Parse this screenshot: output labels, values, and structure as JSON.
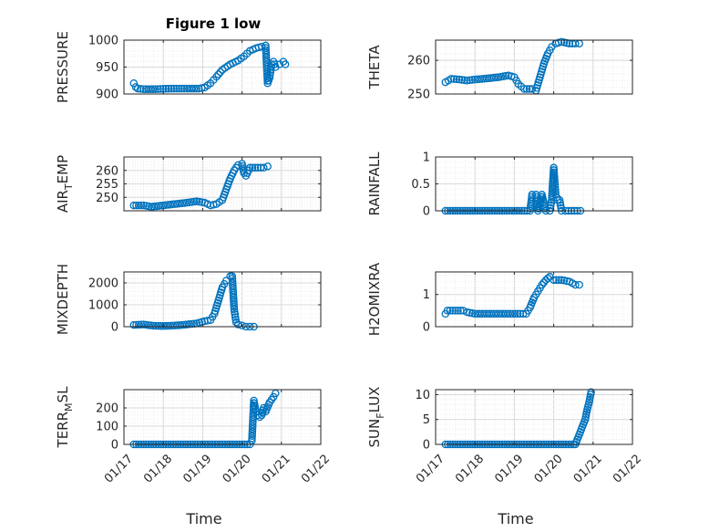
{
  "chart_data": [
    {
      "id": "pressure",
      "type": "scatter",
      "title": "Figure 1 low",
      "ylabel": "PRESSURE",
      "ylim": [
        900,
        1000
      ],
      "yticks": [
        900,
        950,
        1000
      ],
      "series": [
        {
          "points": [
            [
              17.25,
              920
            ],
            [
              17.3,
              913
            ],
            [
              17.35,
              910
            ],
            [
              17.5,
              909
            ],
            [
              17.8,
              909
            ],
            [
              18.2,
              910
            ],
            [
              18.6,
              910
            ],
            [
              18.9,
              910
            ],
            [
              19.05,
              912
            ],
            [
              19.2,
              920
            ],
            [
              19.35,
              932
            ],
            [
              19.5,
              945
            ],
            [
              19.7,
              955
            ],
            [
              19.9,
              962
            ],
            [
              20.05,
              970
            ],
            [
              20.2,
              980
            ],
            [
              20.35,
              985
            ],
            [
              20.5,
              988
            ],
            [
              20.6,
              990
            ],
            [
              20.65,
              920
            ],
            [
              20.7,
              930
            ],
            [
              20.75,
              955
            ],
            [
              20.8,
              960
            ],
            [
              20.85,
              950
            ],
            [
              20.95,
              955
            ],
            [
              21.05,
              960
            ],
            [
              21.1,
              955
            ]
          ]
        }
      ],
      "grid": true,
      "color": "#0072BD"
    },
    {
      "id": "theta",
      "type": "scatter",
      "title": "",
      "ylabel": "THETA",
      "ylim": [
        250,
        266
      ],
      "yticks": [
        250,
        260
      ],
      "series": [
        {
          "points": [
            [
              17.25,
              253.5
            ],
            [
              17.4,
              254.5
            ],
            [
              17.6,
              254.3
            ],
            [
              17.8,
              254
            ],
            [
              18.0,
              254.3
            ],
            [
              18.3,
              254.6
            ],
            [
              18.6,
              255
            ],
            [
              18.85,
              255.5
            ],
            [
              19.0,
              255
            ],
            [
              19.1,
              253
            ],
            [
              19.25,
              251.5
            ],
            [
              19.45,
              251.5
            ],
            [
              19.55,
              251
            ],
            [
              19.65,
              255
            ],
            [
              19.75,
              259
            ],
            [
              19.85,
              262
            ],
            [
              19.95,
              264
            ],
            [
              20.05,
              265
            ],
            [
              20.2,
              265.5
            ],
            [
              20.4,
              265
            ],
            [
              20.55,
              265
            ],
            [
              20.65,
              265
            ]
          ]
        }
      ],
      "grid": true,
      "color": "#0072BD"
    },
    {
      "id": "airtemp",
      "type": "scatter",
      "title": "",
      "ylabel": "AIR_TEMP",
      "ylim": [
        245,
        265
      ],
      "yticks": [
        250,
        255,
        260
      ],
      "series": [
        {
          "points": [
            [
              17.25,
              247
            ],
            [
              17.5,
              247
            ],
            [
              17.7,
              246.5
            ],
            [
              18.0,
              247
            ],
            [
              18.3,
              247.5
            ],
            [
              18.6,
              248
            ],
            [
              18.85,
              248.5
            ],
            [
              19.05,
              248
            ],
            [
              19.2,
              247
            ],
            [
              19.35,
              247.5
            ],
            [
              19.5,
              249
            ],
            [
              19.6,
              253
            ],
            [
              19.7,
              257
            ],
            [
              19.8,
              260
            ],
            [
              19.9,
              262
            ],
            [
              20.0,
              262.5
            ],
            [
              20.05,
              259
            ],
            [
              20.1,
              258
            ],
            [
              20.2,
              261
            ],
            [
              20.4,
              261
            ],
            [
              20.55,
              261
            ],
            [
              20.65,
              261.5
            ]
          ]
        }
      ],
      "grid": true,
      "color": "#0072BD"
    },
    {
      "id": "rainfall",
      "type": "scatter",
      "title": "",
      "ylabel": "RAINFALL",
      "ylim": [
        0,
        1
      ],
      "yticks": [
        0,
        0.5,
        1
      ],
      "series": [
        {
          "points": [
            [
              17.25,
              0
            ],
            [
              17.5,
              0
            ],
            [
              17.75,
              0
            ],
            [
              18.0,
              0
            ],
            [
              18.25,
              0
            ],
            [
              18.5,
              0
            ],
            [
              18.75,
              0
            ],
            [
              19.0,
              0
            ],
            [
              19.25,
              0
            ],
            [
              19.4,
              0
            ],
            [
              19.45,
              0.3
            ],
            [
              19.55,
              0.3
            ],
            [
              19.6,
              0
            ],
            [
              19.7,
              0.3
            ],
            [
              19.8,
              0
            ],
            [
              19.9,
              0
            ],
            [
              19.95,
              0.2
            ],
            [
              20.0,
              0.8
            ],
            [
              20.05,
              0.3
            ],
            [
              20.1,
              0.2
            ],
            [
              20.15,
              0.2
            ],
            [
              20.2,
              0
            ],
            [
              20.3,
              0
            ],
            [
              20.45,
              0
            ],
            [
              20.6,
              0
            ],
            [
              20.68,
              0
            ]
          ]
        }
      ],
      "grid": true,
      "color": "#0072BD"
    },
    {
      "id": "mixdepth",
      "type": "scatter",
      "title": "",
      "ylabel": "MIXDEPTH",
      "ylim": [
        0,
        2500
      ],
      "yticks": [
        0,
        1000,
        2000
      ],
      "series": [
        {
          "points": [
            [
              17.25,
              80
            ],
            [
              17.5,
              100
            ],
            [
              17.75,
              40
            ],
            [
              18.0,
              30
            ],
            [
              18.3,
              50
            ],
            [
              18.6,
              100
            ],
            [
              18.85,
              150
            ],
            [
              19.05,
              250
            ],
            [
              19.2,
              300
            ],
            [
              19.3,
              600
            ],
            [
              19.4,
              1200
            ],
            [
              19.5,
              1800
            ],
            [
              19.6,
              2100
            ],
            [
              19.7,
              2300
            ],
            [
              19.75,
              2300
            ],
            [
              19.8,
              800
            ],
            [
              19.85,
              200
            ],
            [
              19.9,
              100
            ],
            [
              20.0,
              50
            ],
            [
              20.1,
              0
            ],
            [
              20.2,
              0
            ],
            [
              20.3,
              0
            ]
          ]
        }
      ],
      "grid": true,
      "color": "#0072BD"
    },
    {
      "id": "h2omixra",
      "type": "scatter",
      "title": "",
      "ylabel": "H2OMIXRA",
      "ylim": [
        0,
        1.7
      ],
      "yticks": [
        0,
        1
      ],
      "series": [
        {
          "points": [
            [
              17.25,
              0.4
            ],
            [
              17.3,
              0.5
            ],
            [
              17.5,
              0.5
            ],
            [
              17.7,
              0.5
            ],
            [
              17.8,
              0.45
            ],
            [
              18.0,
              0.4
            ],
            [
              18.3,
              0.4
            ],
            [
              18.6,
              0.4
            ],
            [
              18.9,
              0.4
            ],
            [
              19.15,
              0.4
            ],
            [
              19.3,
              0.4
            ],
            [
              19.4,
              0.6
            ],
            [
              19.5,
              0.9
            ],
            [
              19.6,
              1.1
            ],
            [
              19.7,
              1.3
            ],
            [
              19.8,
              1.45
            ],
            [
              19.85,
              1.5
            ],
            [
              19.9,
              1.55
            ],
            [
              20.0,
              1.45
            ],
            [
              20.2,
              1.45
            ],
            [
              20.4,
              1.4
            ],
            [
              20.55,
              1.3
            ],
            [
              20.65,
              1.3
            ]
          ]
        }
      ],
      "grid": true,
      "color": "#0072BD"
    },
    {
      "id": "terrmsl",
      "type": "scatter",
      "title": "",
      "xlabel": "Time",
      "ylabel": "TERR_MSL",
      "ylim": [
        0,
        300
      ],
      "yticks": [
        0,
        100,
        200
      ],
      "xticks": [
        "01/17",
        "01/18",
        "01/19",
        "01/20",
        "01/21",
        "01/22"
      ],
      "series": [
        {
          "points": [
            [
              17.25,
              0
            ],
            [
              17.5,
              0
            ],
            [
              17.75,
              0
            ],
            [
              18.0,
              0
            ],
            [
              18.25,
              0
            ],
            [
              18.5,
              0
            ],
            [
              18.75,
              0
            ],
            [
              19.0,
              0
            ],
            [
              19.25,
              0
            ],
            [
              19.5,
              0
            ],
            [
              19.75,
              0
            ],
            [
              20.0,
              0
            ],
            [
              20.2,
              0
            ],
            [
              20.25,
              20
            ],
            [
              20.3,
              240
            ],
            [
              20.35,
              180
            ],
            [
              20.4,
              160
            ],
            [
              20.45,
              150
            ],
            [
              20.5,
              160
            ],
            [
              20.55,
              200
            ],
            [
              20.6,
              180
            ],
            [
              20.7,
              230
            ],
            [
              20.8,
              260
            ],
            [
              20.85,
              280
            ]
          ]
        }
      ],
      "grid": true,
      "color": "#0072BD"
    },
    {
      "id": "sunflux",
      "type": "scatter",
      "title": "",
      "xlabel": "Time",
      "ylabel": "SUN_FLUX",
      "ylim": [
        0,
        11
      ],
      "yticks": [
        0,
        5,
        10
      ],
      "xticks": [
        "01/17",
        "01/18",
        "01/19",
        "01/20",
        "01/21",
        "01/22"
      ],
      "series": [
        {
          "points": [
            [
              17.25,
              0
            ],
            [
              17.5,
              0
            ],
            [
              17.75,
              0
            ],
            [
              18.0,
              0
            ],
            [
              18.25,
              0
            ],
            [
              18.5,
              0
            ],
            [
              18.75,
              0
            ],
            [
              19.0,
              0
            ],
            [
              19.25,
              0
            ],
            [
              19.5,
              0
            ],
            [
              19.75,
              0
            ],
            [
              20.0,
              0
            ],
            [
              20.25,
              0
            ],
            [
              20.5,
              0
            ],
            [
              20.55,
              0
            ],
            [
              20.6,
              1
            ],
            [
              20.65,
              2
            ],
            [
              20.7,
              3
            ],
            [
              20.75,
              4
            ],
            [
              20.8,
              5
            ],
            [
              20.85,
              7
            ],
            [
              20.9,
              8.5
            ],
            [
              20.95,
              10.5
            ]
          ]
        }
      ],
      "grid": true,
      "color": "#0072BD"
    }
  ]
}
